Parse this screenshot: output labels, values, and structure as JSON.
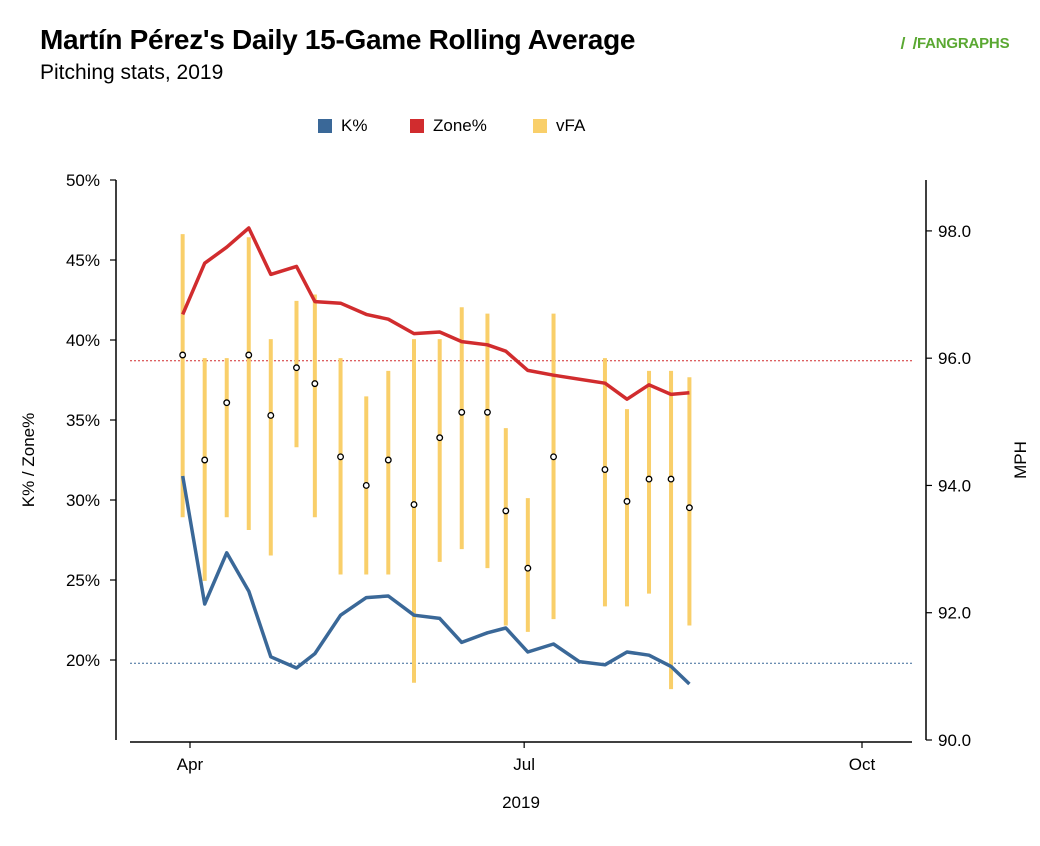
{
  "title": "Martín Pérez's Daily 15-Game Rolling Average",
  "subtitle": "Pitching stats, 2019",
  "logo": "FANGRAPHS",
  "colors": {
    "k": "#3a6898",
    "zone": "#d12c2e",
    "vfa": "#f9cf6a"
  },
  "chart_data": {
    "type": "line",
    "xlabel": "2019",
    "ylabel_left": "K% / Zone%",
    "ylabel_right": "MPH",
    "x_ticks": [
      "Apr",
      "Jul",
      "Oct"
    ],
    "ylim_left": [
      0.15,
      0.5
    ],
    "ylim_right": [
      90.0,
      98.8
    ],
    "y_ticks_left": [
      "20%",
      "25%",
      "30%",
      "35%",
      "40%",
      "45%",
      "50%"
    ],
    "y_ticks_right": [
      "90.0",
      "92.0",
      "94.0",
      "96.0",
      "98.0"
    ],
    "legend_position": "top",
    "x_dates": [
      "2019-03-30",
      "2019-04-05",
      "2019-04-11",
      "2019-04-17",
      "2019-04-23",
      "2019-04-30",
      "2019-05-05",
      "2019-05-12",
      "2019-05-19",
      "2019-05-25",
      "2019-06-01",
      "2019-06-08",
      "2019-06-14",
      "2019-06-21",
      "2019-06-26",
      "2019-07-02",
      "2019-07-09",
      "2019-07-16",
      "2019-07-23",
      "2019-07-29",
      "2019-08-04",
      "2019-08-10",
      "2019-08-15"
    ],
    "series": [
      {
        "name": "K%",
        "values": [
          0.315,
          0.235,
          0.267,
          0.243,
          0.202,
          0.195,
          0.204,
          0.228,
          0.239,
          0.24,
          0.228,
          0.226,
          0.211,
          0.217,
          0.22,
          0.205,
          0.21,
          0.199,
          0.197,
          0.205,
          0.203,
          0.196,
          0.185
        ]
      },
      {
        "name": "Zone%",
        "values": [
          0.416,
          0.448,
          0.458,
          0.47,
          0.441,
          0.446,
          0.424,
          0.423,
          0.416,
          0.413,
          0.404,
          0.405,
          0.399,
          0.397,
          0.393,
          0.381,
          0.378,
          0.373,
          0.363,
          0.372,
          0.366,
          0.367
        ]
      }
    ],
    "zone_dates": [
      "2019-03-30",
      "2019-04-05",
      "2019-04-11",
      "2019-04-17",
      "2019-04-23",
      "2019-04-30",
      "2019-05-05",
      "2019-05-12",
      "2019-05-19",
      "2019-05-25",
      "2019-06-01",
      "2019-06-08",
      "2019-06-14",
      "2019-06-21",
      "2019-06-26",
      "2019-07-02",
      "2019-07-09",
      "2019-07-23",
      "2019-07-29",
      "2019-08-04",
      "2019-08-10",
      "2019-08-15"
    ],
    "k_dates": [
      "2019-03-30",
      "2019-04-05",
      "2019-04-11",
      "2019-04-17",
      "2019-04-23",
      "2019-04-30",
      "2019-05-05",
      "2019-05-12",
      "2019-05-19",
      "2019-05-25",
      "2019-06-01",
      "2019-06-08",
      "2019-06-14",
      "2019-06-21",
      "2019-06-26",
      "2019-07-02",
      "2019-07-09",
      "2019-07-16",
      "2019-07-23",
      "2019-07-29",
      "2019-08-04",
      "2019-08-10",
      "2019-08-15"
    ],
    "vfa": {
      "name": "vFA",
      "dates": [
        "2019-03-30",
        "2019-04-05",
        "2019-04-11",
        "2019-04-17",
        "2019-04-23",
        "2019-04-30",
        "2019-05-05",
        "2019-05-12",
        "2019-05-19",
        "2019-05-25",
        "2019-06-01",
        "2019-06-08",
        "2019-06-14",
        "2019-06-21",
        "2019-06-26",
        "2019-07-02",
        "2019-07-09",
        "2019-07-23",
        "2019-07-29",
        "2019-08-04",
        "2019-08-10",
        "2019-08-15"
      ],
      "mean": [
        96.05,
        94.4,
        95.3,
        96.05,
        95.1,
        95.85,
        95.6,
        94.45,
        94.0,
        94.4,
        93.7,
        94.75,
        95.15,
        95.15,
        93.6,
        92.7,
        94.45,
        94.25,
        93.75,
        94.1,
        94.1,
        93.65
      ],
      "low": [
        93.5,
        92.5,
        93.5,
        93.3,
        92.9,
        94.6,
        93.5,
        92.6,
        92.6,
        92.6,
        90.9,
        92.8,
        93.0,
        92.7,
        91.8,
        91.7,
        91.9,
        92.1,
        92.1,
        92.3,
        90.8,
        91.8
      ],
      "high": [
        97.95,
        96.0,
        96.0,
        97.9,
        96.3,
        96.9,
        97.0,
        96.0,
        95.4,
        95.8,
        96.3,
        96.3,
        96.8,
        96.7,
        94.9,
        93.8,
        96.7,
        96.0,
        95.2,
        95.8,
        95.8,
        95.7
      ]
    },
    "reference_lines": {
      "k_avg": 0.198,
      "zone_avg": 0.387
    }
  }
}
